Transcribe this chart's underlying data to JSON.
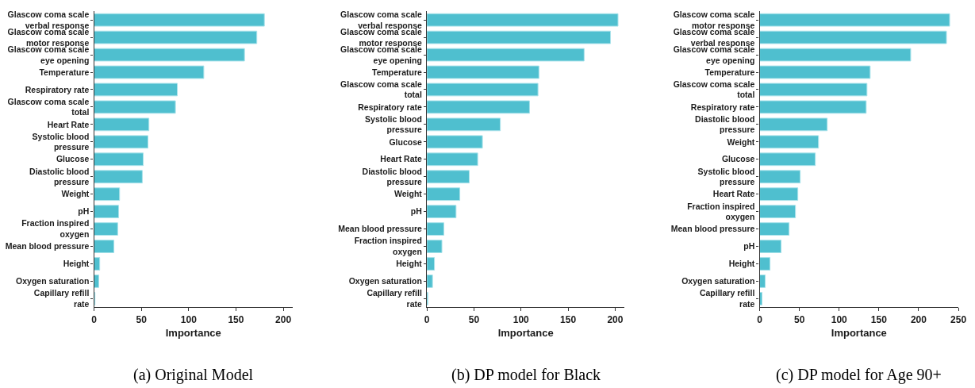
{
  "chart_data": [
    {
      "type": "bar",
      "orientation": "horizontal",
      "title": "(a) Original Model",
      "xlabel": "Importance",
      "color": "#4fbfcf",
      "categories": [
        "Glascow coma scale\nverbal response",
        "Glascow coma scale\nmotor response",
        "Glascow coma scale\neye opening",
        "Temperature",
        "Respiratory rate",
        "Glascow coma scale\ntotal",
        "Heart Rate",
        "Systolic blood\npressure",
        "Glucose",
        "Diastolic blood\npressure",
        "Weight",
        "pH",
        "Fraction inspired\noxygen",
        "Mean blood pressure",
        "Height",
        "Oxygen saturation",
        "Capillary refill\nrate"
      ],
      "values": [
        180,
        172,
        159,
        116,
        88,
        86,
        58,
        57,
        52,
        51,
        27,
        26,
        25,
        21,
        6,
        5,
        1
      ],
      "xlim": [
        0,
        210
      ],
      "xticks": [
        0,
        50,
        100,
        150,
        200
      ]
    },
    {
      "type": "bar",
      "orientation": "horizontal",
      "title": "(b) DP model for Black",
      "xlabel": "Importance",
      "color": "#4fbfcf",
      "categories": [
        "Glascow coma scale\nverbal response",
        "Glascow coma scale\nmotor response",
        "Glascow coma scale\neye opening",
        "Temperature",
        "Glascow coma scale\ntotal",
        "Respiratory rate",
        "Systolic blood\npressure",
        "Glucose",
        "Heart Rate",
        "Diastolic blood\npressure",
        "Weight",
        "pH",
        "Mean blood pressure",
        "Fraction inspired\noxygen",
        "Height",
        "Oxygen saturation",
        "Capillary refill\nrate"
      ],
      "values": [
        203,
        195,
        167,
        119,
        118,
        109,
        78,
        59,
        54,
        45,
        35,
        31,
        18,
        16,
        8,
        6,
        1
      ],
      "xlim": [
        0,
        210
      ],
      "xticks": [
        0,
        50,
        100,
        150,
        200
      ]
    },
    {
      "type": "bar",
      "orientation": "horizontal",
      "title": "(c) DP model for Age 90+",
      "xlabel": "Importance",
      "color": "#4fbfcf",
      "categories": [
        "Glascow coma scale\nmotor response",
        "Glascow coma scale\nverbal response",
        "Glascow coma scale\neye opening",
        "Temperature",
        "Glascow coma scale\ntotal",
        "Respiratory rate",
        "Diastolic blood\npressure",
        "Weight",
        "Glucose",
        "Systolic blood\npressure",
        "Heart Rate",
        "Fraction inspired\noxygen",
        "Mean blood pressure",
        "pH",
        "Height",
        "Oxygen saturation",
        "Capillary refill\nrate"
      ],
      "values": [
        239,
        235,
        190,
        139,
        135,
        134,
        85,
        74,
        70,
        51,
        48,
        45,
        37,
        27,
        13,
        7,
        3
      ],
      "xlim": [
        0,
        250
      ],
      "xticks": [
        0,
        50,
        100,
        150,
        200,
        250
      ]
    }
  ]
}
